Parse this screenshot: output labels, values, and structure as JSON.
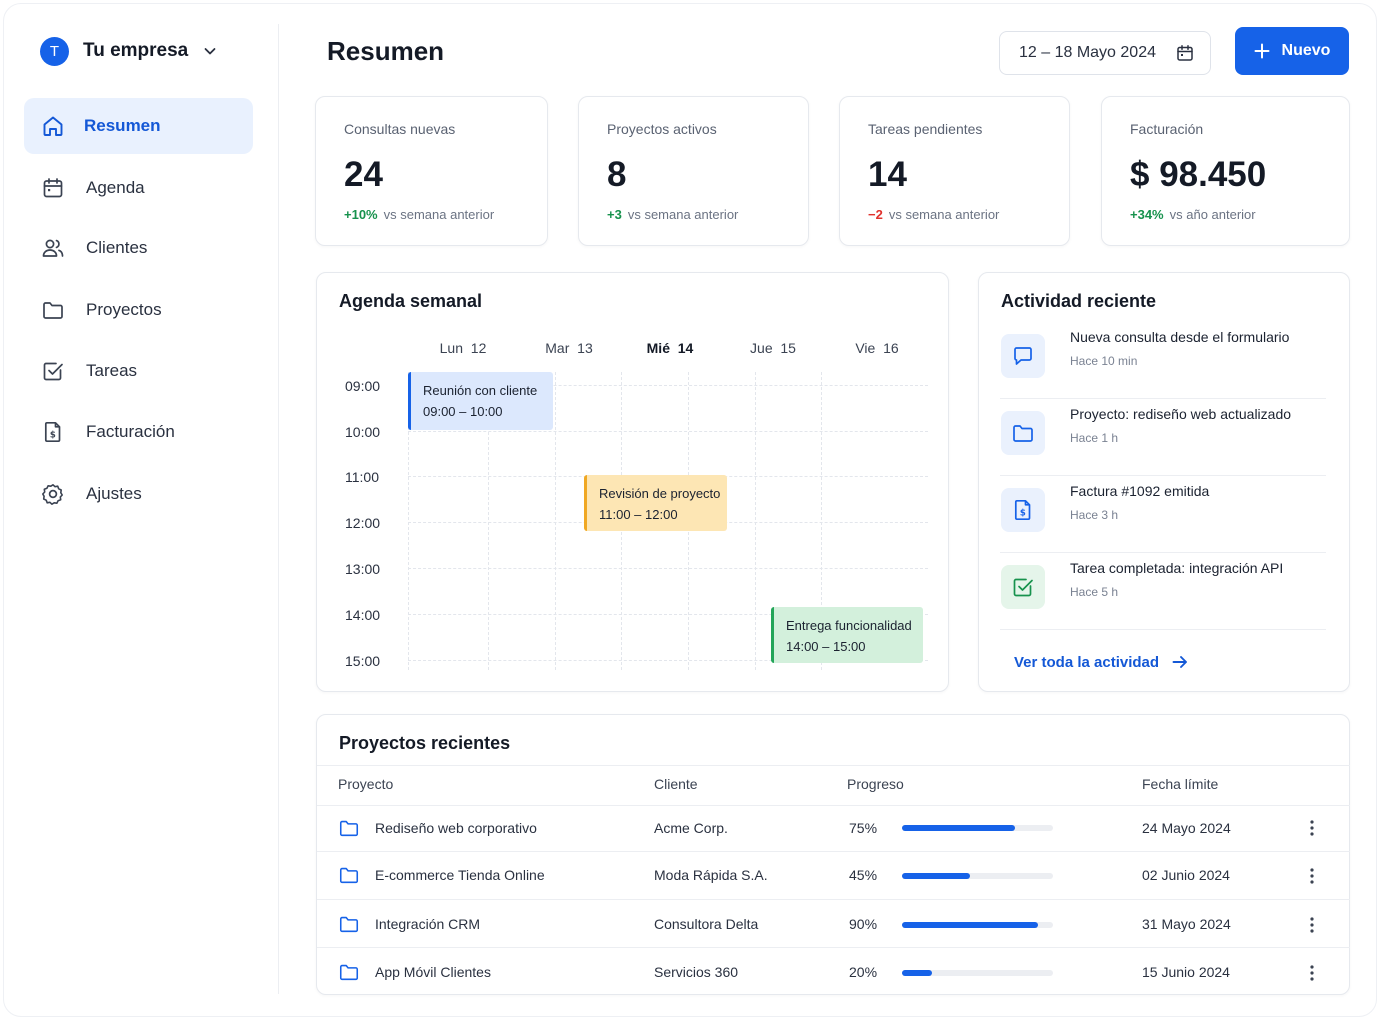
{
  "company": {
    "avatar_letter": "T",
    "name": "Tu empresa"
  },
  "sidebar": {
    "items": [
      {
        "label": "Resumen",
        "icon": "home-icon",
        "active": true
      },
      {
        "label": "Agenda",
        "icon": "calendar-icon"
      },
      {
        "label": "Clientes",
        "icon": "users-icon"
      },
      {
        "label": "Proyectos",
        "icon": "folder-icon"
      },
      {
        "label": "Tareas",
        "icon": "checkbox-icon"
      },
      {
        "label": "Facturación",
        "icon": "invoice-icon"
      },
      {
        "label": "Ajustes",
        "icon": "gear-icon"
      }
    ]
  },
  "header": {
    "title": "Resumen",
    "date_range": "12 – 18 Mayo 2024",
    "new_button": "Nuevo"
  },
  "kpis": [
    {
      "label": "Consultas nuevas",
      "value": "24",
      "delta": "+10%",
      "delta_type": "positive",
      "note": "vs semana anterior"
    },
    {
      "label": "Proyectos activos",
      "value": "8",
      "delta": "+3",
      "delta_type": "positive",
      "note": "vs semana anterior"
    },
    {
      "label": "Tareas pendientes",
      "value": "14",
      "delta": "−2",
      "delta_type": "negative",
      "note": "vs semana anterior"
    },
    {
      "label": "Facturación",
      "value": "$ 98.450",
      "delta": "+34%",
      "delta_type": "positive",
      "note": "vs año anterior"
    }
  ],
  "agenda": {
    "title": "Agenda semanal",
    "days": [
      {
        "name": "Lun",
        "num": "12"
      },
      {
        "name": "Mar",
        "num": "13"
      },
      {
        "name": "Mié",
        "num": "14",
        "today": true
      },
      {
        "name": "Jue",
        "num": "15"
      },
      {
        "name": "Vie",
        "num": "16"
      }
    ],
    "times": [
      "09:00",
      "10:00",
      "11:00",
      "12:00",
      "13:00",
      "14:00",
      "15:00"
    ],
    "events": [
      {
        "title": "Reunión con cliente",
        "time": "09:00 – 10:00",
        "color": "blue"
      },
      {
        "title": "Revisión de proyecto",
        "time": "11:00 – 12:00",
        "color": "yellow"
      },
      {
        "title": "Entrega funcionalidad",
        "time": "14:00 – 15:00",
        "color": "green"
      }
    ]
  },
  "activity": {
    "title": "Actividad reciente",
    "items": [
      {
        "title": "Nueva consulta desde el formulario",
        "time": "Hace 10 min",
        "icon": "message-icon"
      },
      {
        "title": "Proyecto: rediseño web actualizado",
        "time": "Hace 1 h",
        "icon": "folder-icon"
      },
      {
        "title": "Factura #1092 emitida",
        "time": "Hace 3 h",
        "icon": "invoice-icon"
      },
      {
        "title": "Tarea completada: integración API",
        "time": "Hace 5 h",
        "icon": "checkbox-icon"
      }
    ],
    "link": "Ver toda la actividad"
  },
  "projects": {
    "title": "Proyectos recientes",
    "columns": [
      "Proyecto",
      "Cliente",
      "Progreso",
      "Fecha límite"
    ],
    "rows": [
      {
        "name": "Rediseño web corporativo",
        "client": "Acme Corp.",
        "progress": 75,
        "progress_label": "75%",
        "deadline": "24 Mayo 2024"
      },
      {
        "name": "E-commerce Tienda Online",
        "client": "Moda Rápida S.A.",
        "progress": 45,
        "progress_label": "45%",
        "deadline": "02 Junio 2024"
      },
      {
        "name": "Integración CRM",
        "client": "Consultora Delta",
        "progress": 90,
        "progress_label": "90%",
        "deadline": "31 Mayo 2024"
      },
      {
        "name": "App Móvil Clientes",
        "client": "Servicios 360",
        "progress": 20,
        "progress_label": "20%",
        "deadline": "15 Junio 2024"
      }
    ]
  },
  "colors": {
    "accent": "#1662e8",
    "positive": "#17924d",
    "negative": "#e0322d",
    "event_blue": "#dce8fd",
    "event_yellow": "#fde6b4",
    "event_green": "#d3f0dc"
  }
}
